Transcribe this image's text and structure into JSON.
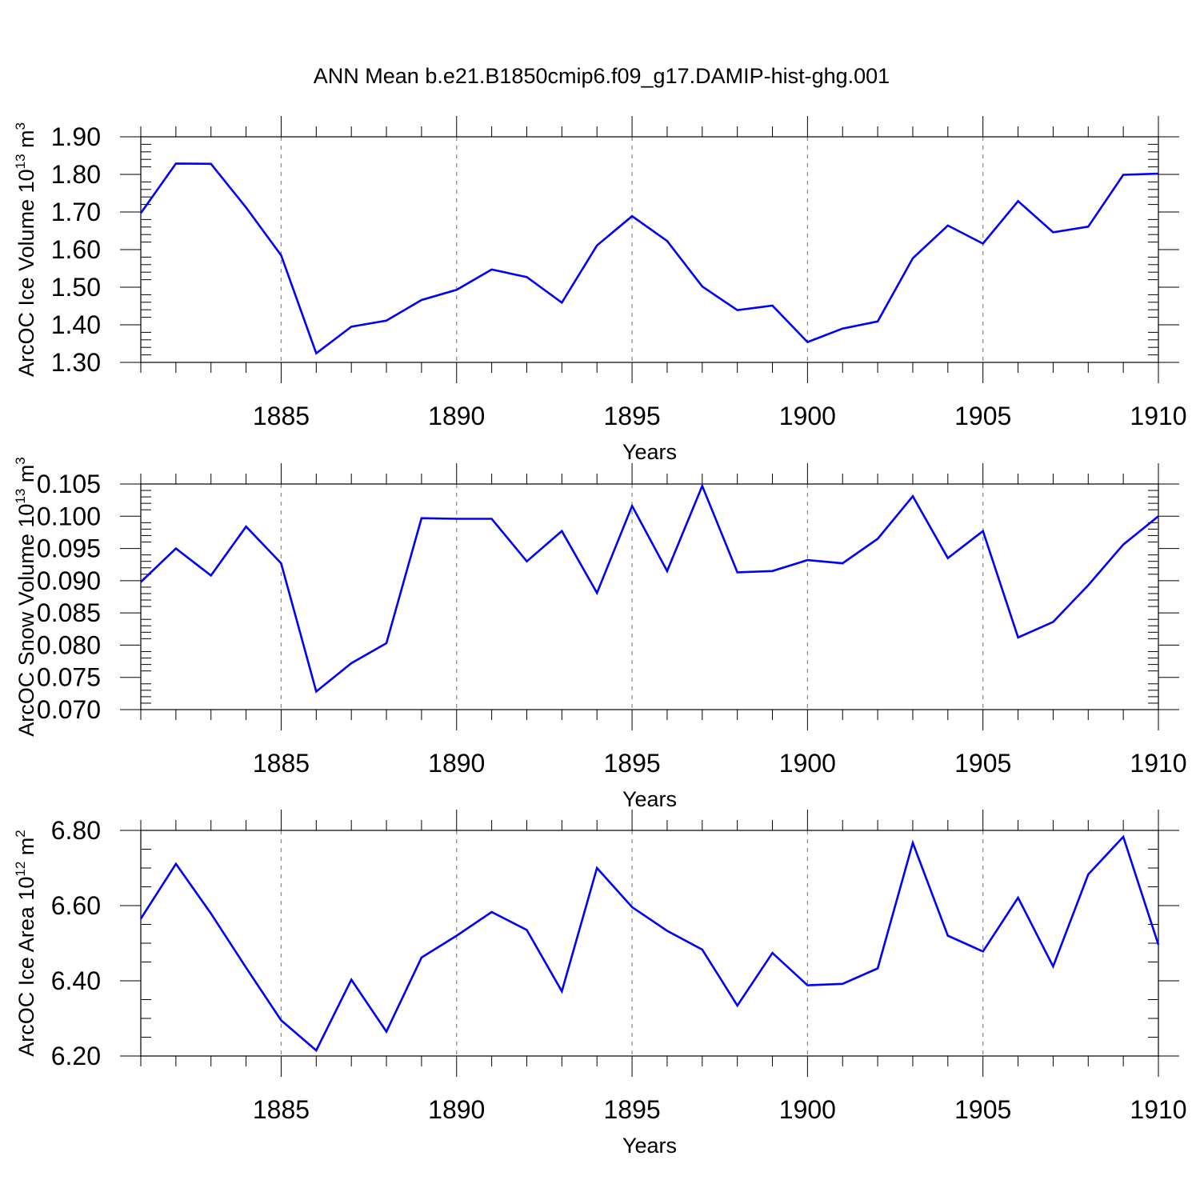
{
  "figure_title": "ANN Mean b.e21.B1850cmip6.f09_g17.DAMIP-hist-ghg.001",
  "colors": {
    "series": "#0000ff",
    "axis": "#000000",
    "grid": "#888888"
  },
  "chart_data": [
    {
      "type": "line",
      "title": "ANN Mean b.e21.B1850cmip6.f09_g17.DAMIP-hist-ghg.001",
      "xlabel": "Years",
      "ylabel_main": "ArcOC Ice Volume 10",
      "ylabel_exp": "13",
      "ylabel_unit": " m",
      "ylabel_unit_exp": "3",
      "xlim": [
        1881,
        1910
      ],
      "ylim": [
        1.3,
        1.9
      ],
      "grid": "vertical dashed at x major ticks",
      "x_ticks": [
        1885,
        1890,
        1895,
        1900,
        1905,
        1910
      ],
      "x_tick_labels": [
        "1885",
        "1890",
        "1895",
        "1900",
        "1905",
        "1910"
      ],
      "y_ticks": [
        1.3,
        1.4,
        1.5,
        1.6,
        1.7,
        1.8,
        1.9
      ],
      "y_tick_labels": [
        "1.30",
        "1.40",
        "1.50",
        "1.60",
        "1.70",
        "1.80",
        "1.90"
      ],
      "y_minor_step": 0.02,
      "x": [
        1881,
        1882,
        1883,
        1884,
        1885,
        1886,
        1887,
        1888,
        1889,
        1890,
        1891,
        1892,
        1893,
        1894,
        1895,
        1896,
        1897,
        1898,
        1899,
        1900,
        1901,
        1902,
        1903,
        1904,
        1905,
        1906,
        1907,
        1908,
        1909,
        1910
      ],
      "y": [
        1.697,
        1.829,
        1.828,
        1.712,
        1.585,
        1.324,
        1.395,
        1.411,
        1.466,
        1.493,
        1.547,
        1.527,
        1.459,
        1.611,
        1.689,
        1.623,
        1.502,
        1.439,
        1.451,
        1.354,
        1.39,
        1.409,
        1.577,
        1.664,
        1.616,
        1.729,
        1.646,
        1.661,
        1.799,
        1.802
      ]
    },
    {
      "type": "line",
      "xlabel": "Years",
      "ylabel_main": "ArcOC Snow Volume 10",
      "ylabel_exp": "13",
      "ylabel_unit": " m",
      "ylabel_unit_exp": "3",
      "xlim": [
        1881,
        1910
      ],
      "ylim": [
        0.07,
        0.105
      ],
      "grid": "vertical dashed at x major ticks",
      "x_ticks": [
        1885,
        1890,
        1895,
        1900,
        1905,
        1910
      ],
      "x_tick_labels": [
        "1885",
        "1890",
        "1895",
        "1900",
        "1905",
        "1910"
      ],
      "y_ticks": [
        0.07,
        0.075,
        0.08,
        0.085,
        0.09,
        0.095,
        0.1,
        0.105
      ],
      "y_tick_labels": [
        "0.070",
        "0.075",
        "0.080",
        "0.085",
        "0.090",
        "0.095",
        "0.100",
        "0.105"
      ],
      "y_minor_step": 0.001,
      "x": [
        1881,
        1882,
        1883,
        1884,
        1885,
        1886,
        1887,
        1888,
        1889,
        1890,
        1891,
        1892,
        1893,
        1894,
        1895,
        1896,
        1897,
        1898,
        1899,
        1900,
        1901,
        1902,
        1903,
        1904,
        1905,
        1906,
        1907,
        1908,
        1909,
        1910
      ],
      "y": [
        0.0898,
        0.095,
        0.0908,
        0.0984,
        0.0927,
        0.0728,
        0.0772,
        0.0803,
        0.0997,
        0.0996,
        0.0996,
        0.093,
        0.0977,
        0.0881,
        0.1016,
        0.0915,
        0.1047,
        0.0913,
        0.0915,
        0.0932,
        0.0927,
        0.0965,
        0.1031,
        0.0935,
        0.0977,
        0.0812,
        0.0836,
        0.0893,
        0.0956,
        0.1
      ]
    },
    {
      "type": "line",
      "xlabel": "Years",
      "ylabel_main": "ArcOC Ice Area 10",
      "ylabel_exp": "12",
      "ylabel_unit": " m",
      "ylabel_unit_exp": "2",
      "xlim": [
        1881,
        1910
      ],
      "ylim": [
        6.2,
        6.8
      ],
      "grid": "vertical dashed at x major ticks",
      "x_ticks": [
        1885,
        1890,
        1895,
        1900,
        1905,
        1910
      ],
      "x_tick_labels": [
        "1885",
        "1890",
        "1895",
        "1900",
        "1905",
        "1910"
      ],
      "y_ticks": [
        6.2,
        6.4,
        6.6,
        6.8
      ],
      "y_tick_labels": [
        "6.20",
        "6.40",
        "6.60",
        "6.80"
      ],
      "y_minor_step": 0.05,
      "x": [
        1881,
        1882,
        1883,
        1884,
        1885,
        1886,
        1887,
        1888,
        1889,
        1890,
        1891,
        1892,
        1893,
        1894,
        1895,
        1896,
        1897,
        1898,
        1899,
        1900,
        1901,
        1902,
        1903,
        1904,
        1905,
        1906,
        1907,
        1908,
        1909,
        1910
      ],
      "y": [
        6.565,
        6.711,
        6.579,
        6.435,
        6.295,
        6.215,
        6.403,
        6.265,
        6.462,
        6.52,
        6.583,
        6.535,
        6.372,
        6.7,
        6.596,
        6.533,
        6.483,
        6.334,
        6.474,
        6.388,
        6.392,
        6.433,
        6.767,
        6.52,
        6.478,
        6.621,
        6.438,
        6.683,
        6.783,
        6.496
      ]
    }
  ]
}
